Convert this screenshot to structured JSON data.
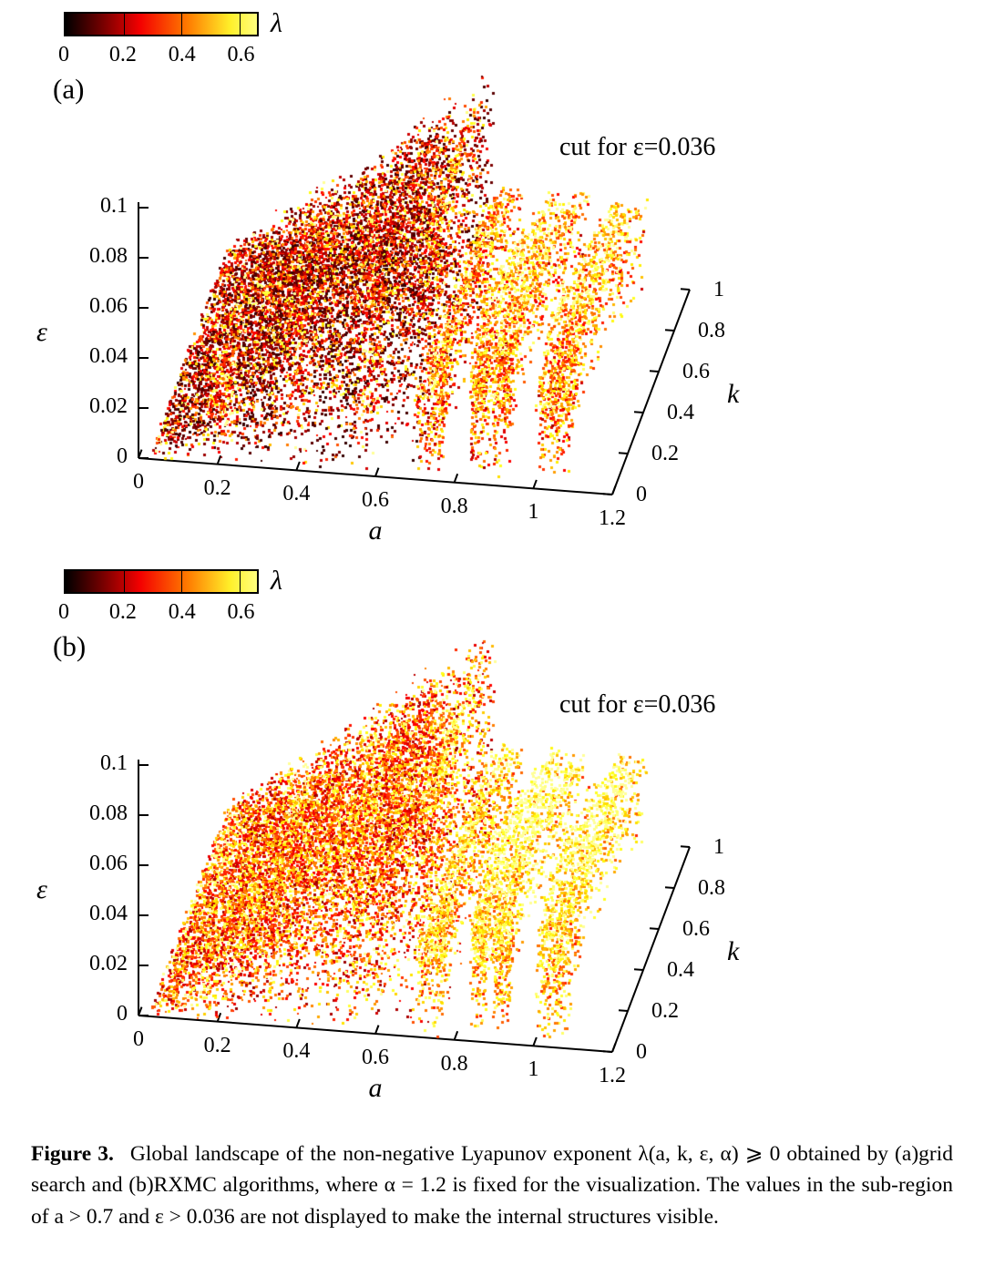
{
  "figure": {
    "caption_label": "Figure 3.",
    "caption_text": "Global landscape of the non-negative Lyapunov exponent λ(a, k, ε, α) ⩾ 0 obtained by (a)grid search and (b)RXMC algorithms, where α = 1.2 is fixed for the visualization. The values in the sub-region of a > 0.7 and ε > 0.036 are not displayed to make the internal structures visible."
  },
  "chart_data": [
    {
      "type": "scatter",
      "plot_kind": "3d-point-cloud-surface",
      "panel_label": "(a)",
      "method": "grid search",
      "annotation": "cut for ε=0.036",
      "colorbar": {
        "label": "λ",
        "ticks": [
          "0",
          "0.2",
          "0.4",
          "0.6"
        ],
        "range": [
          0,
          0.66
        ],
        "gradient": [
          "#000000",
          "#7a0000",
          "#f40000",
          "#ff7c00",
          "#ffef2a",
          "#ffff7e"
        ]
      },
      "x_axis": {
        "label": "a",
        "range": [
          0,
          1.2
        ],
        "ticks": [
          "0",
          "0.2",
          "0.4",
          "0.6",
          "0.8",
          "1",
          "1.2"
        ]
      },
      "y_axis": {
        "label": "k",
        "range": [
          0,
          1
        ],
        "ticks": [
          "0",
          "0.2",
          "0.4",
          "0.6",
          "0.8",
          "1"
        ]
      },
      "z_axis": {
        "label": "ε",
        "range": [
          0,
          0.1
        ],
        "ticks": [
          "0",
          "0.02",
          "0.04",
          "0.06",
          "0.08",
          "0.1"
        ]
      },
      "cut": {
        "epsilon": 0.036,
        "a_threshold": 0.7
      },
      "style": {
        "seed": 20240,
        "base": 0.05,
        "gain": 0.58,
        "dark_bias": 2.6,
        "blade_base": 0.16,
        "blade_gain": 0.46,
        "spray": 700
      }
    },
    {
      "type": "scatter",
      "plot_kind": "3d-point-cloud-surface",
      "panel_label": "(b)",
      "method": "RXMC",
      "annotation": "cut for ε=0.036",
      "colorbar": {
        "label": "λ",
        "ticks": [
          "0",
          "0.2",
          "0.4",
          "0.6"
        ],
        "range": [
          0,
          0.66
        ],
        "gradient": [
          "#000000",
          "#7a0000",
          "#f40000",
          "#ff7c00",
          "#ffef2a",
          "#ffff7e"
        ]
      },
      "x_axis": {
        "label": "a",
        "range": [
          0,
          1.2
        ],
        "ticks": [
          "0",
          "0.2",
          "0.4",
          "0.6",
          "0.8",
          "1",
          "1.2"
        ]
      },
      "y_axis": {
        "label": "k",
        "range": [
          0,
          1
        ],
        "ticks": [
          "0",
          "0.2",
          "0.4",
          "0.6",
          "0.8",
          "1"
        ]
      },
      "z_axis": {
        "label": "ε",
        "range": [
          0,
          0.1
        ],
        "ticks": [
          "0",
          "0.02",
          "0.04",
          "0.06",
          "0.08",
          "0.1"
        ]
      },
      "cut": {
        "epsilon": 0.036,
        "a_threshold": 0.7
      },
      "style": {
        "seed": 77,
        "base": 0.15,
        "gain": 0.48,
        "dark_bias": 1.3,
        "blade_base": 0.3,
        "blade_gain": 0.36,
        "spray": 1400
      }
    }
  ]
}
